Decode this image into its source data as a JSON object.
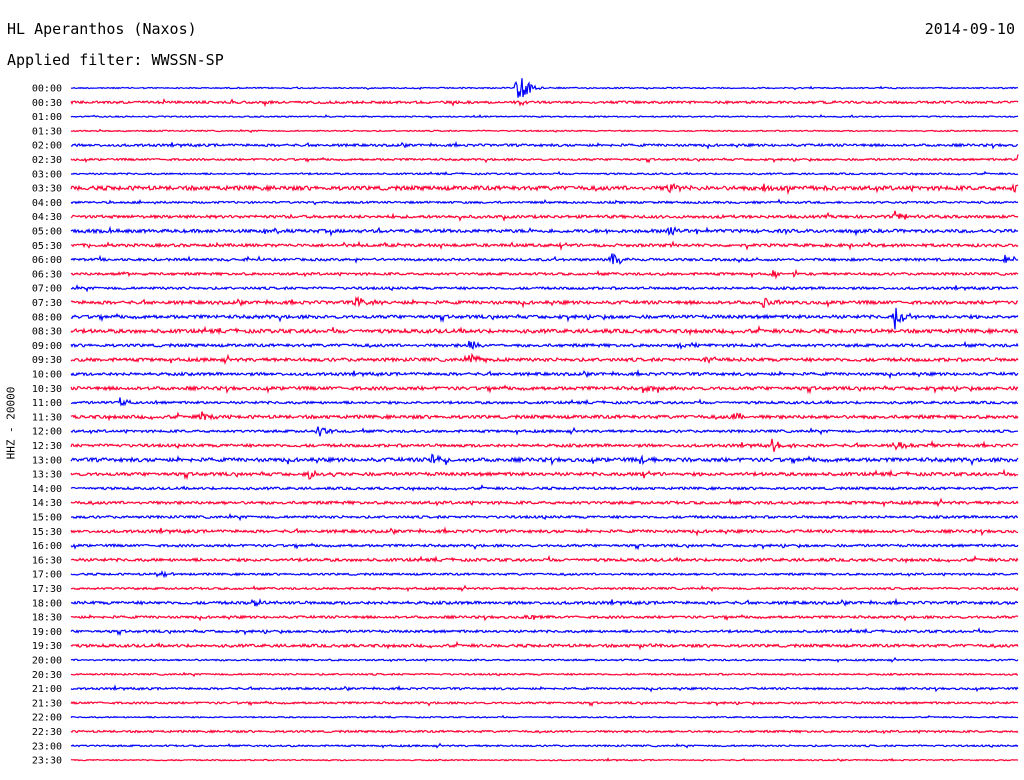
{
  "header": {
    "station": "HL Aperanthos (Naxos)",
    "date": "2014-09-10",
    "filter_text": "Applied filter: WWSSN-SP"
  },
  "chart_data": {
    "type": "helicorder",
    "title": "HL Aperanthos (Naxos)",
    "subtitle": "Applied filter: WWSSN-SP",
    "date": "2014-09-10",
    "ylabel": "HHZ - 20000",
    "colors": [
      "#0000ff",
      "#ff0033"
    ],
    "rows": [
      "00:00",
      "00:30",
      "01:00",
      "01:30",
      "02:00",
      "02:30",
      "03:00",
      "03:30",
      "04:00",
      "04:30",
      "05:00",
      "05:30",
      "06:00",
      "06:30",
      "07:00",
      "07:30",
      "08:00",
      "08:30",
      "09:00",
      "09:30",
      "10:00",
      "10:30",
      "11:00",
      "11:30",
      "12:00",
      "12:30",
      "13:00",
      "13:30",
      "14:00",
      "14:30",
      "15:00",
      "15:30",
      "16:00",
      "16:30",
      "17:00",
      "17:30",
      "18:00",
      "18:30",
      "19:00",
      "19:30",
      "20:00",
      "20:30",
      "21:00",
      "21:30",
      "22:00",
      "22:30",
      "23:00",
      "23:30"
    ],
    "noise": [
      0.6,
      1.2,
      0.6,
      0.6,
      1.2,
      1.0,
      0.8,
      2.0,
      1.0,
      1.4,
      1.6,
      1.4,
      1.2,
      1.2,
      1.2,
      1.6,
      1.6,
      1.8,
      1.4,
      1.6,
      1.4,
      1.6,
      1.2,
      1.6,
      1.2,
      1.4,
      1.8,
      1.6,
      1.2,
      1.4,
      1.2,
      1.4,
      1.2,
      1.4,
      1.0,
      1.0,
      1.4,
      1.2,
      1.2,
      1.4,
      0.8,
      0.8,
      1.0,
      1.0,
      0.6,
      1.0,
      0.8,
      0.6
    ],
    "events": [
      {
        "row": 0,
        "t": 0.47,
        "amp": 22
      },
      {
        "row": 5,
        "t": 1.0,
        "amp": 6
      },
      {
        "row": 7,
        "t": 0.63,
        "amp": 7
      },
      {
        "row": 7,
        "t": 0.73,
        "amp": 4
      },
      {
        "row": 7,
        "t": 0.775,
        "amp": 4
      },
      {
        "row": 7,
        "t": 0.995,
        "amp": 8
      },
      {
        "row": 9,
        "t": 0.87,
        "amp": 7
      },
      {
        "row": 10,
        "t": 0.63,
        "amp": 6
      },
      {
        "row": 11,
        "t": 0.51,
        "amp": 5
      },
      {
        "row": 12,
        "t": 0.57,
        "amp": 9
      },
      {
        "row": 12,
        "t": 0.985,
        "amp": 6
      },
      {
        "row": 13,
        "t": 0.05,
        "amp": 3
      },
      {
        "row": 13,
        "t": 0.74,
        "amp": 4
      },
      {
        "row": 15,
        "t": 0.3,
        "amp": 8
      },
      {
        "row": 15,
        "t": 0.73,
        "amp": 7
      },
      {
        "row": 16,
        "t": 0.87,
        "amp": 12
      },
      {
        "row": 18,
        "t": 0.42,
        "amp": 6
      },
      {
        "row": 18,
        "t": 0.64,
        "amp": 6
      },
      {
        "row": 19,
        "t": 0.42,
        "amp": 6
      },
      {
        "row": 19,
        "t": 0.67,
        "amp": 5
      },
      {
        "row": 21,
        "t": 0.6,
        "amp": 6
      },
      {
        "row": 22,
        "t": 0.05,
        "amp": 4
      },
      {
        "row": 23,
        "t": 0.135,
        "amp": 8
      },
      {
        "row": 23,
        "t": 0.7,
        "amp": 5
      },
      {
        "row": 24,
        "t": 0.26,
        "amp": 8
      },
      {
        "row": 25,
        "t": 0.74,
        "amp": 7
      },
      {
        "row": 25,
        "t": 0.87,
        "amp": 7
      },
      {
        "row": 26,
        "t": 0.38,
        "amp": 6
      },
      {
        "row": 26,
        "t": 0.6,
        "amp": 5
      },
      {
        "row": 27,
        "t": 0.25,
        "amp": 5
      },
      {
        "row": 27,
        "t": 0.6,
        "amp": 5
      },
      {
        "row": 34,
        "t": 0.09,
        "amp": 4
      },
      {
        "row": 36,
        "t": 0.19,
        "amp": 5
      },
      {
        "row": 37,
        "t": 0.48,
        "amp": 4
      },
      {
        "row": 39,
        "t": 0.6,
        "amp": 3
      }
    ]
  }
}
